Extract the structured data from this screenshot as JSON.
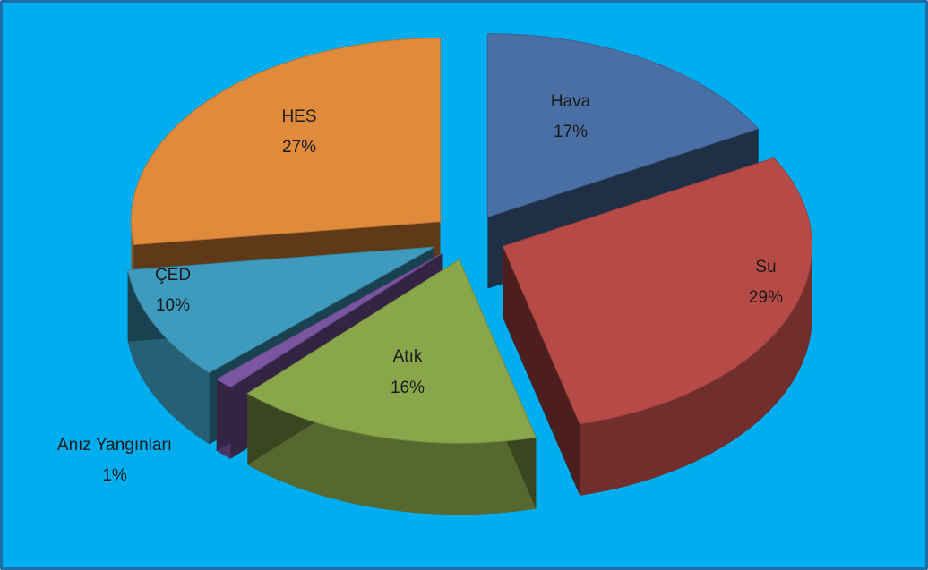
{
  "colors": {
    "background": "#00aeef",
    "frame": "#1d6fa6"
  },
  "chart_data": {
    "type": "pie",
    "style": "exploded-3d",
    "categories": [
      "Hava",
      "Su",
      "Atık",
      "Anız Yangınları",
      "ÇED",
      "HES"
    ],
    "values": [
      17,
      29,
      16,
      1,
      10,
      27
    ],
    "value_labels": [
      "17%",
      "29%",
      "16%",
      "1%",
      "10%",
      "27%"
    ],
    "colors": [
      "#4a6fa5",
      "#b54a47",
      "#8aa64b",
      "#7a55a0",
      "#3e9bbd",
      "#e08a3c"
    ],
    "legend": "none",
    "data_labels": "inside"
  }
}
